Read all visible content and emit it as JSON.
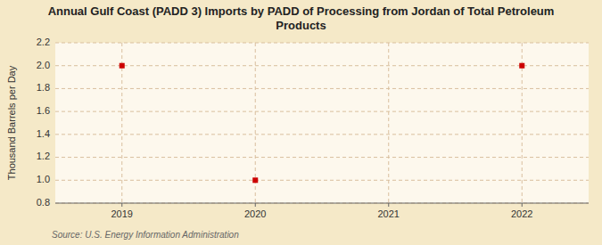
{
  "chart_data": {
    "type": "scatter",
    "title": "Annual Gulf Coast (PADD 3) Imports by PADD of Processing from Jordan of Total Petroleum\nProducts",
    "ylabel": "Thousand Barrels per Day",
    "source": "Source: U.S. Energy Information Administration",
    "x": [
      2019,
      2020,
      2022
    ],
    "values": [
      2.0,
      1.0,
      2.0
    ],
    "color": "#cc0000",
    "marker": "square",
    "xlim": [
      2018.5,
      2022.5
    ],
    "ylim": [
      0.8,
      2.2
    ],
    "xticks": [
      2019,
      2020,
      2021,
      2022
    ],
    "yticks": [
      0.8,
      {
        "value": 1.0,
        "label": "1.0"
      },
      1.2,
      1.4,
      1.6,
      1.8,
      {
        "value": 2.0,
        "label": "2.0"
      },
      2.2
    ],
    "grid": true
  }
}
